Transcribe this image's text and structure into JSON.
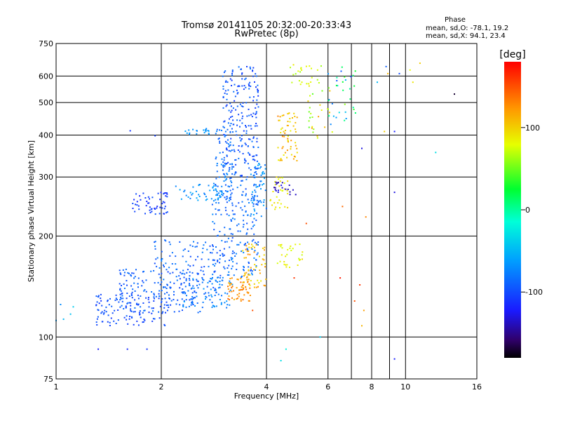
{
  "title": "Tromsø 20141105 20:32:00-20:33:43",
  "subtitle": "RwPretec (8p)",
  "stats": {
    "heading": "Phase",
    "line_o": "mean, sd,O: -78.1, 19.2",
    "line_x": "mean, sd,X:  94.1, 23.4"
  },
  "colorbar": {
    "label": "[deg]",
    "ticks": [
      "100",
      "0",
      "-100"
    ],
    "tick_values": [
      100,
      0,
      -100
    ],
    "range": [
      -180,
      180
    ]
  },
  "chart_data": {
    "type": "scatter",
    "xlabel": "Frequency [MHz]",
    "ylabel": "Stationary phase Virtual Height [km]",
    "xscale": "log",
    "yscale": "log",
    "xlim": [
      1,
      16
    ],
    "ylim": [
      75,
      750
    ],
    "xticks": [
      {
        "v": 1,
        "label": "1"
      },
      {
        "v": 2,
        "label": "2"
      },
      {
        "v": 4,
        "label": "4"
      },
      {
        "v": 6,
        "label": "6"
      },
      {
        "v": 8,
        "label": "8"
      },
      {
        "v": 10,
        "label": "10"
      },
      {
        "v": 16,
        "label": "16"
      }
    ],
    "xgrid_extra": [
      7,
      9
    ],
    "yticks": [
      {
        "v": 75,
        "label": "75"
      },
      {
        "v": 100,
        "label": "100"
      },
      {
        "v": 200,
        "label": "200"
      },
      {
        "v": 300,
        "label": "300"
      },
      {
        "v": 400,
        "label": "400"
      },
      {
        "v": 500,
        "label": "500"
      },
      {
        "v": 600,
        "label": "600"
      },
      {
        "v": 750,
        "label": "750"
      }
    ],
    "grid": true,
    "clusters": [
      {
        "x": [
          1.3,
          2.1
        ],
        "y": [
          108,
          135
        ],
        "phase": [
          -110,
          -90
        ],
        "n": 120
      },
      {
        "x": [
          1.5,
          2.6
        ],
        "y": [
          118,
          160
        ],
        "phase": [
          -105,
          -80
        ],
        "n": 140
      },
      {
        "x": [
          1.9,
          3.1
        ],
        "y": [
          130,
          195
        ],
        "phase": [
          -100,
          -75
        ],
        "n": 140
      },
      {
        "x": [
          2.3,
          3.2
        ],
        "y": [
          122,
          150
        ],
        "phase": [
          -90,
          -60
        ],
        "n": 70
      },
      {
        "x": [
          2.8,
          3.8
        ],
        "y": [
          150,
          300
        ],
        "phase": [
          -100,
          -70
        ],
        "n": 200
      },
      {
        "x": [
          3.0,
          3.8
        ],
        "y": [
          300,
          640
        ],
        "phase": [
          -110,
          -80
        ],
        "n": 230
      },
      {
        "x": [
          2.85,
          3.2
        ],
        "y": [
          250,
          420
        ],
        "phase": [
          -95,
          -70
        ],
        "n": 60
      },
      {
        "x": [
          2.2,
          3.0
        ],
        "y": [
          255,
          285
        ],
        "phase": [
          -80,
          -55
        ],
        "n": 45
      },
      {
        "x": [
          1.65,
          2.1
        ],
        "y": [
          232,
          270
        ],
        "phase": [
          -120,
          -95
        ],
        "n": 55
      },
      {
        "x": [
          2.3,
          2.75
        ],
        "y": [
          402,
          418
        ],
        "phase": [
          -75,
          -60
        ],
        "n": 20
      },
      {
        "x": [
          3.1,
          3.6
        ],
        "y": [
          128,
          150
        ],
        "phase": [
          110,
          145
        ],
        "n": 55
      },
      {
        "x": [
          3.4,
          4.0
        ],
        "y": [
          140,
          190
        ],
        "phase": [
          85,
          130
        ],
        "n": 60
      },
      {
        "x": [
          4.3,
          5.1
        ],
        "y": [
          160,
          190
        ],
        "phase": [
          70,
          100
        ],
        "n": 30
      },
      {
        "x": [
          3.6,
          4.0
        ],
        "y": [
          225,
          330
        ],
        "phase": [
          -90,
          -55
        ],
        "n": 60
      },
      {
        "x": [
          4.1,
          4.6
        ],
        "y": [
          240,
          300
        ],
        "phase": [
          75,
          100
        ],
        "n": 30
      },
      {
        "x": [
          4.3,
          4.9
        ],
        "y": [
          330,
          470
        ],
        "phase": [
          80,
          130
        ],
        "n": 60
      },
      {
        "x": [
          4.2,
          4.9
        ],
        "y": [
          265,
          290
        ],
        "phase": [
          -150,
          -125
        ],
        "n": 20
      },
      {
        "x": [
          4.6,
          5.8
        ],
        "y": [
          560,
          650
        ],
        "phase": [
          60,
          90
        ],
        "n": 25
      },
      {
        "x": [
          5.2,
          6.2
        ],
        "y": [
          390,
          560
        ],
        "phase": [
          40,
          130
        ],
        "n": 25
      },
      {
        "x": [
          6.0,
          7.2
        ],
        "y": [
          430,
          640
        ],
        "phase": [
          -100,
          60
        ],
        "n": 35
      }
    ],
    "points": [
      {
        "x": 1.0,
        "y": 112,
        "phase": -60
      },
      {
        "x": 1.05,
        "y": 113,
        "phase": -50
      },
      {
        "x": 1.12,
        "y": 123,
        "phase": -40
      },
      {
        "x": 1.03,
        "y": 125,
        "phase": -70
      },
      {
        "x": 1.1,
        "y": 117,
        "phase": -45
      },
      {
        "x": 1.32,
        "y": 92,
        "phase": -120
      },
      {
        "x": 1.6,
        "y": 92,
        "phase": -115
      },
      {
        "x": 1.82,
        "y": 92,
        "phase": -110
      },
      {
        "x": 1.63,
        "y": 412,
        "phase": -110
      },
      {
        "x": 1.92,
        "y": 398,
        "phase": -105
      },
      {
        "x": 4.55,
        "y": 92,
        "phase": -20
      },
      {
        "x": 4.4,
        "y": 85,
        "phase": -30
      },
      {
        "x": 9.3,
        "y": 86,
        "phase": -120
      },
      {
        "x": 5.7,
        "y": 100,
        "phase": -40
      },
      {
        "x": 7.4,
        "y": 143,
        "phase": 160
      },
      {
        "x": 7.15,
        "y": 128,
        "phase": 150
      },
      {
        "x": 7.6,
        "y": 120,
        "phase": 120
      },
      {
        "x": 6.5,
        "y": 150,
        "phase": 170
      },
      {
        "x": 4.8,
        "y": 150,
        "phase": 160
      },
      {
        "x": 3.65,
        "y": 120,
        "phase": 150
      },
      {
        "x": 7.5,
        "y": 108,
        "phase": 110
      },
      {
        "x": 7.7,
        "y": 228,
        "phase": 130
      },
      {
        "x": 6.6,
        "y": 245,
        "phase": 140
      },
      {
        "x": 5.2,
        "y": 218,
        "phase": 150
      },
      {
        "x": 9.3,
        "y": 270,
        "phase": -130
      },
      {
        "x": 12.2,
        "y": 355,
        "phase": -30
      },
      {
        "x": 9.3,
        "y": 410,
        "phase": -120
      },
      {
        "x": 8.7,
        "y": 410,
        "phase": 100
      },
      {
        "x": 7.5,
        "y": 365,
        "phase": -130
      },
      {
        "x": 8.3,
        "y": 575,
        "phase": -50
      },
      {
        "x": 8.8,
        "y": 640,
        "phase": -90
      },
      {
        "x": 8.9,
        "y": 610,
        "phase": 110
      },
      {
        "x": 10.3,
        "y": 625,
        "phase": 80
      },
      {
        "x": 10.5,
        "y": 575,
        "phase": 90
      },
      {
        "x": 11.0,
        "y": 655,
        "phase": 100
      },
      {
        "x": 13.8,
        "y": 530,
        "phase": -170
      },
      {
        "x": 9.6,
        "y": 610,
        "phase": -100
      }
    ]
  }
}
